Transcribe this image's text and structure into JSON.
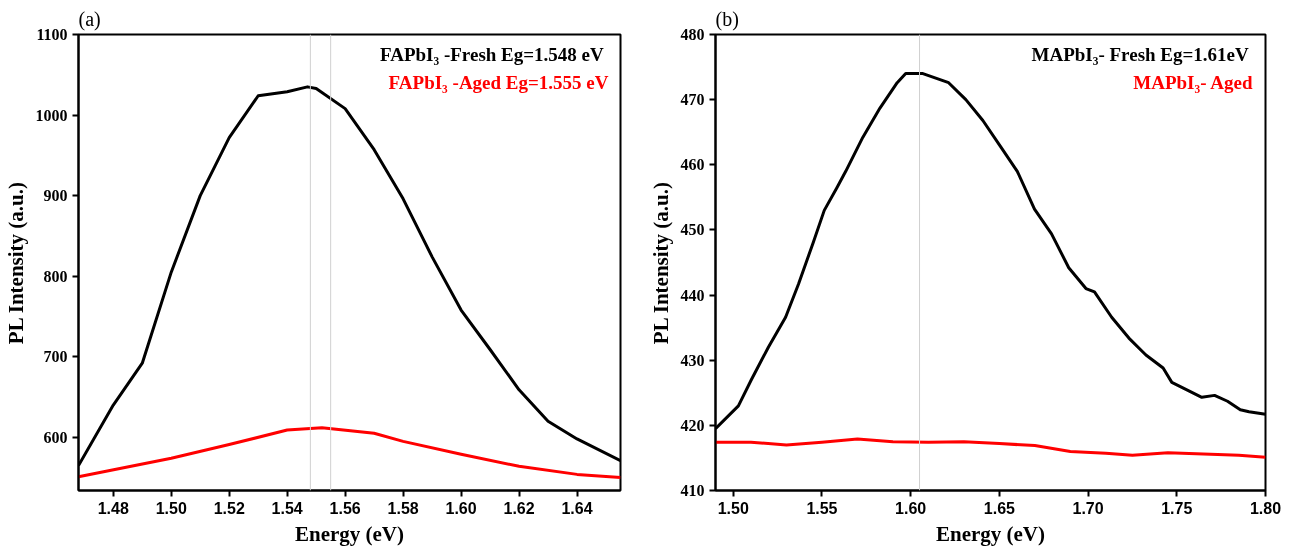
{
  "chart_data": [
    {
      "type": "line",
      "title": "(a)",
      "xlabel": "Energy (eV)",
      "ylabel": "PL Intensity (a.u.)",
      "xlim": [
        1.468,
        1.655
      ],
      "ylim": [
        534,
        1100
      ],
      "xticks": [
        1.48,
        {
          "value": 1.5,
          "label": "1.50"
        },
        1.52,
        1.54,
        1.56,
        1.58,
        {
          "value": 1.6,
          "label": "1.60"
        },
        1.62,
        1.64
      ],
      "yticks": [
        600,
        700,
        800,
        900,
        1000,
        1100
      ],
      "grid": false,
      "legend": "top right",
      "line_style": "solid",
      "marker": "none",
      "series": [
        {
          "name": "FAPbI₃ -Fresh  Eg=1.548 eV",
          "color": "#000000",
          "x": [
            1.468,
            1.48,
            1.49,
            1.5,
            1.51,
            1.52,
            1.53,
            1.54,
            1.547,
            1.55,
            1.56,
            1.57,
            1.58,
            1.59,
            1.6,
            1.61,
            1.62,
            1.63,
            1.64,
            1.655
          ],
          "values": [
            565,
            640,
            692,
            805,
            900,
            972,
            1024,
            1029,
            1035,
            1033,
            1008,
            957,
            896,
            824,
            758,
            709,
            659,
            620,
            598,
            571
          ]
        },
        {
          "name": "FAPbI₃ -Aged Eg=1.555 eV",
          "color": "#ff0000",
          "x": [
            1.468,
            1.5,
            1.52,
            1.54,
            1.552,
            1.57,
            1.58,
            1.6,
            1.62,
            1.64,
            1.655
          ],
          "values": [
            551,
            574,
            591,
            609,
            612,
            605,
            595,
            579,
            564,
            554,
            550
          ]
        }
      ],
      "ref_lines": [
        {
          "axis": "x",
          "value": 1.548,
          "color": "#d0d0d0"
        },
        {
          "axis": "x",
          "value": 1.555,
          "color": "#d0d0d0"
        }
      ]
    },
    {
      "type": "line",
      "title": "(b)",
      "xlabel": "Energy (eV)",
      "ylabel": "PL Intensity (a.u.)",
      "xlim": [
        1.49,
        1.8
      ],
      "ylim": [
        410,
        480
      ],
      "xticks": [
        {
          "value": 1.5,
          "label": "1.50"
        },
        1.55,
        {
          "value": 1.6,
          "label": "1.60"
        },
        1.65,
        {
          "value": 1.7,
          "label": "1.70"
        },
        1.75,
        {
          "value": 1.8,
          "label": "1.80"
        }
      ],
      "yticks": [
        410,
        420,
        430,
        440,
        450,
        460,
        470,
        480
      ],
      "grid": false,
      "legend": "top right",
      "line_style": "solid",
      "marker": "none",
      "series": [
        {
          "name": "MAPbI₃- Fresh  Eg=1.61eV",
          "color": "#000000",
          "x": [
            1.49,
            1.5029,
            1.5102,
            1.5198,
            1.5295,
            1.5368,
            1.545,
            1.5513,
            1.5585,
            1.5634,
            1.573,
            1.5827,
            1.5924,
            1.5972,
            1.6069,
            1.6214,
            1.6311,
            1.6407,
            1.6504,
            1.6601,
            1.6698,
            1.6794,
            1.6891,
            1.6988,
            1.7036,
            1.7133,
            1.723,
            1.7326,
            1.7423,
            1.7472,
            1.7568,
            1.7641,
            1.7713,
            1.7786,
            1.7858,
            1.7907,
            1.8
          ],
          "values": [
            419.5,
            423,
            427,
            432,
            436.6,
            441.7,
            448,
            453,
            456.5,
            459,
            464.2,
            468.7,
            472.6,
            474,
            474,
            472.6,
            470,
            466.8,
            462.9,
            459,
            453.2,
            449.4,
            444.2,
            441,
            440.5,
            436.6,
            433.4,
            430.8,
            428.8,
            426.6,
            425.3,
            424.3,
            424.6,
            423.7,
            422.4,
            422.1,
            421.7
          ]
        },
        {
          "name": "MAPbI₃- Aged",
          "color": "#ff0000",
          "x": [
            1.49,
            1.51,
            1.53,
            1.55,
            1.57,
            1.59,
            1.61,
            1.63,
            1.65,
            1.67,
            1.69,
            1.71,
            1.725,
            1.745,
            1.765,
            1.785,
            1.8
          ],
          "values": [
            417.4,
            417.4,
            417,
            417.4,
            417.9,
            417.5,
            417.4,
            417.5,
            417.2,
            416.9,
            416,
            415.7,
            415.4,
            415.8,
            415.6,
            415.4,
            415.1
          ]
        }
      ],
      "ref_lines": [
        {
          "axis": "x",
          "value": 1.605,
          "color": "#d0d0d0"
        }
      ]
    }
  ]
}
